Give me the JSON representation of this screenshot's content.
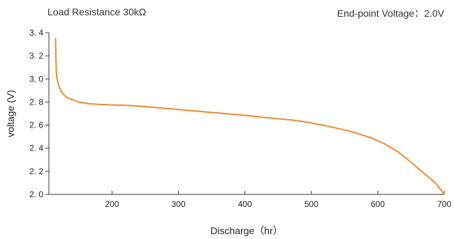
{
  "header": {
    "left_text": "Load Resistance 30kΩ",
    "right_text": "End-point Voltage：2.0V"
  },
  "chart_data": {
    "type": "line",
    "title": "",
    "xlabel": "Discharge（hr）",
    "ylabel": "voltage (V)",
    "xlim": [
      105,
      700
    ],
    "ylim": [
      2.0,
      3.4
    ],
    "x_ticks": [
      200,
      300,
      400,
      500,
      600,
      700
    ],
    "x_tick_labels": [
      "200",
      "300",
      "400",
      "500",
      "600",
      "700"
    ],
    "y_ticks": [
      2.0,
      2.2,
      2.4,
      2.6,
      2.8,
      3.0,
      3.2,
      3.4
    ],
    "y_tick_labels": [
      "2. 0",
      "2. 2",
      "2. 4",
      "2. 6",
      "2. 8",
      "3. 0",
      "3. 2",
      "3. 4"
    ],
    "grid": false,
    "line_color": "#f28a2e",
    "series": [
      {
        "name": "",
        "x": [
          115,
          115.5,
          116,
          117,
          119,
          122,
          126,
          132,
          140,
          150,
          165,
          180,
          200,
          220,
          240,
          260,
          280,
          300,
          330,
          360,
          400,
          440,
          470,
          500,
          530,
          560,
          590,
          610,
          630,
          650,
          670,
          685,
          695,
          700
        ],
        "y": [
          3.35,
          3.2,
          3.08,
          3.01,
          2.96,
          2.91,
          2.87,
          2.84,
          2.82,
          2.8,
          2.785,
          2.78,
          2.775,
          2.772,
          2.765,
          2.755,
          2.745,
          2.735,
          2.72,
          2.705,
          2.685,
          2.66,
          2.645,
          2.62,
          2.585,
          2.545,
          2.49,
          2.44,
          2.37,
          2.28,
          2.18,
          2.11,
          2.04,
          2.0
        ]
      }
    ]
  }
}
